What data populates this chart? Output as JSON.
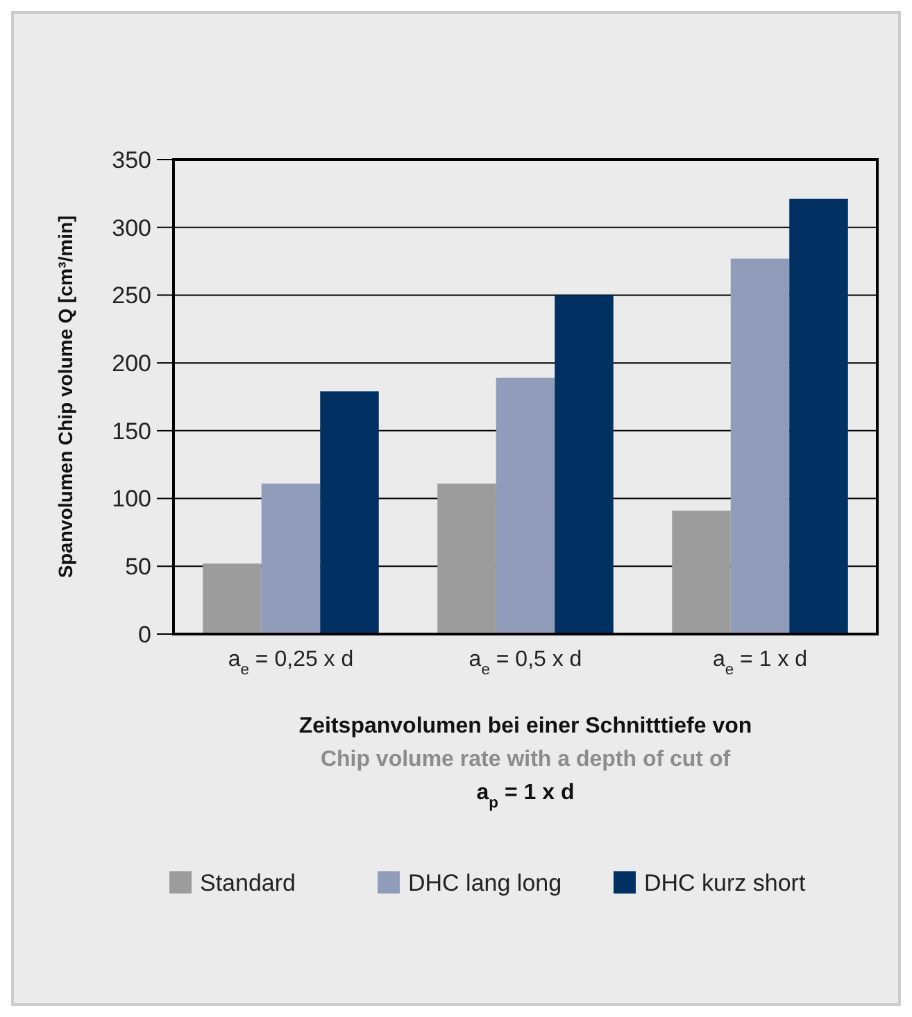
{
  "chart_data": {
    "type": "bar",
    "ylabel": "Spanvolumen Chip volume Q [cm³/min]",
    "xlabel": "Zeitspanvolumen bei einer Schnitttiefe von\nChip volume rate with a depth of cut of\na$_{p}$ = 1 x d",
    "categories": [
      "a$_{e}$ = 0,25 x d",
      "a$_{e}$ = 0,5 x d",
      "a$_{e}$ = 1 x d"
    ],
    "series": [
      {
        "name": "Standard",
        "color": "#9c9c9c",
        "values": [
          52,
          111,
          91
        ]
      },
      {
        "name": "DHC lang long",
        "color": "#909cb9",
        "values": [
          111,
          189,
          277
        ]
      },
      {
        "name": "DHC kurz short",
        "color": "#003162",
        "values": [
          179,
          250,
          321
        ]
      }
    ],
    "ylim": [
      0,
      350
    ],
    "yticks": [
      0,
      50,
      100,
      150,
      200,
      250,
      300,
      350
    ],
    "grid": "y",
    "legend": "bottom"
  }
}
